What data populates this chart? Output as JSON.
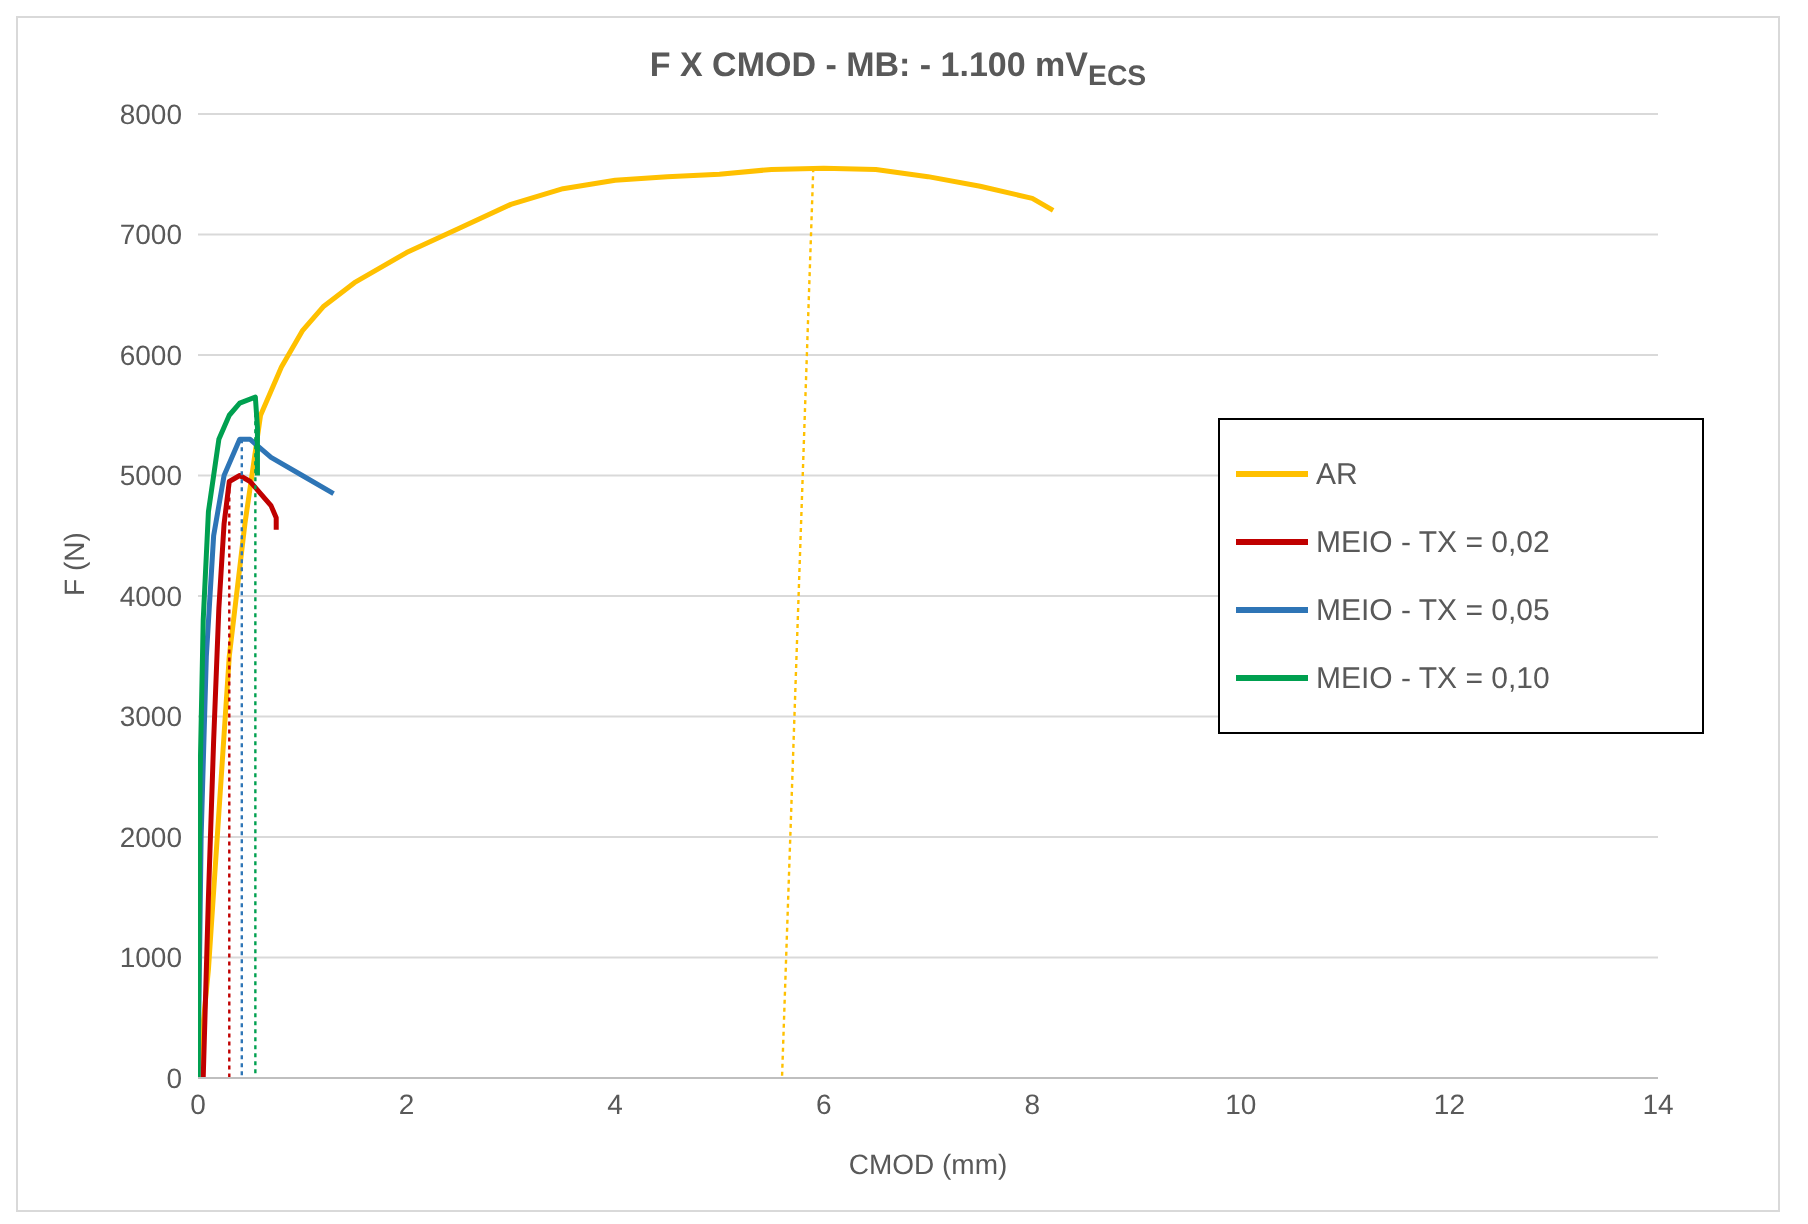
{
  "chart_data": {
    "type": "line",
    "title": "F X CMOD - MB: - 1.100 mV$_{ECS}$",
    "xlabel": "CMOD (mm)",
    "ylabel": "F (N)",
    "xlim": [
      0,
      14
    ],
    "xticks": [
      0,
      2,
      4,
      6,
      8,
      10,
      12,
      14
    ],
    "ylim": [
      0,
      8000
    ],
    "yticks": [
      0,
      1000,
      2000,
      3000,
      4000,
      5000,
      6000,
      7000,
      8000
    ],
    "grid": "y",
    "legend": "right",
    "marker": "none",
    "line_style": "solid",
    "series": [
      {
        "name": "AR",
        "color": "#ffc000",
        "x": [
          0,
          0.1,
          0.2,
          0.3,
          0.45,
          0.6,
          0.8,
          1,
          1.2,
          1.5,
          2,
          2.5,
          3,
          3.5,
          4,
          4.5,
          5,
          5.5,
          6,
          6.5,
          7,
          7.5,
          8,
          8.2
        ],
        "values": [
          0,
          900,
          2200,
          3500,
          4600,
          5500,
          5900,
          6200,
          6400,
          6600,
          6850,
          7050,
          7250,
          7380,
          7450,
          7480,
          7500,
          7540,
          7550,
          7540,
          7480,
          7400,
          7300,
          7200
        ]
      },
      {
        "name": "MEIO - TX = 0,02",
        "color": "#c00000",
        "x": [
          0.05,
          0.1,
          0.15,
          0.2,
          0.25,
          0.3,
          0.4,
          0.5,
          0.6,
          0.7,
          0.75,
          0.75
        ],
        "values": [
          0,
          1500,
          2800,
          3900,
          4600,
          4950,
          5000,
          4950,
          4850,
          4750,
          4650,
          4550
        ]
      },
      {
        "name": "MEIO - TX = 0,05",
        "color": "#2e75b6",
        "x": [
          0,
          0.03,
          0.08,
          0.15,
          0.25,
          0.4,
          0.5,
          0.7,
          1,
          1.3
        ],
        "values": [
          0,
          2000,
          3500,
          4500,
          5000,
          5300,
          5300,
          5150,
          5000,
          4850
        ]
      },
      {
        "name": "MEIO - TX = 0,10",
        "color": "#00a050",
        "x": [
          0,
          0.02,
          0.05,
          0.1,
          0.2,
          0.3,
          0.4,
          0.55,
          0.57,
          0.57
        ],
        "values": [
          0,
          2500,
          3800,
          4700,
          5300,
          5500,
          5600,
          5650,
          5400,
          5000
        ]
      },
      {
        "color": "#ffc000",
        "line_style": "dotted",
        "x": [
          5.9,
          5.6
        ],
        "values": [
          7550,
          0
        ]
      },
      {
        "color": "#c00000",
        "line_style": "dotted",
        "x": [
          0.3,
          0.3
        ],
        "values": [
          4950,
          0
        ]
      },
      {
        "color": "#2e75b6",
        "line_style": "dotted",
        "x": [
          0.42,
          0.42
        ],
        "values": [
          5300,
          0
        ]
      },
      {
        "color": "#00a050",
        "line_style": "dotted",
        "x": [
          0.55,
          0.55
        ],
        "values": [
          5650,
          0
        ]
      }
    ]
  }
}
